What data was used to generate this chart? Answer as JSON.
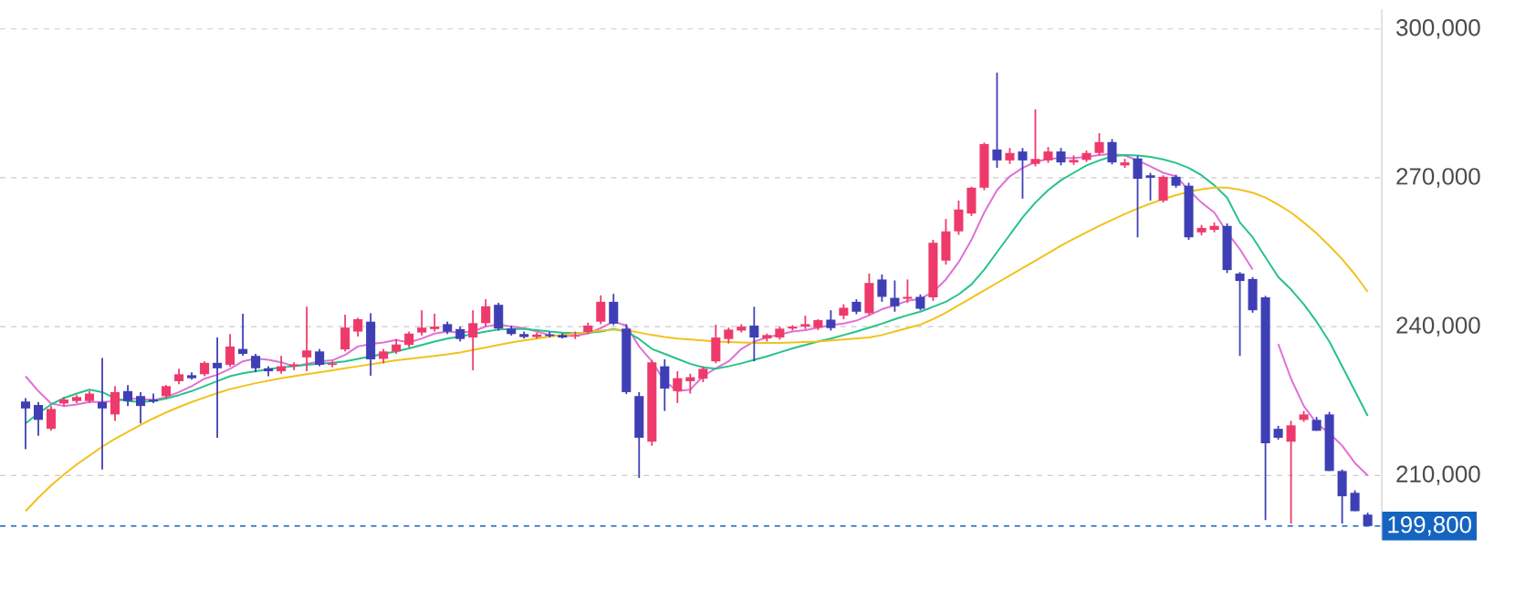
{
  "chart_data": {
    "type": "candlestick",
    "categories": [
      null,
      null,
      null,
      null,
      null,
      null,
      null,
      null,
      null,
      null,
      null,
      null,
      null,
      null,
      null,
      null,
      null,
      null,
      null,
      null,
      null,
      null,
      null,
      null,
      null,
      null,
      null,
      null,
      null,
      null,
      null,
      null,
      null,
      null,
      null,
      null,
      null,
      null,
      null,
      null,
      null,
      null,
      null,
      null,
      null,
      null,
      null,
      null,
      null,
      null,
      null,
      null,
      null,
      null,
      null,
      null,
      null,
      null,
      null,
      null,
      null,
      null,
      null,
      null,
      null,
      null,
      null,
      null,
      null,
      null,
      null,
      null,
      null,
      null,
      null,
      null,
      null,
      null,
      null,
      null,
      null,
      null,
      null,
      null,
      null,
      null,
      null,
      null,
      null,
      null,
      null,
      null,
      null,
      null,
      null,
      null,
      null,
      null,
      null,
      null,
      null,
      null,
      null,
      null,
      null,
      null
    ],
    "ohlc": [
      [
        224900,
        225600,
        215300,
        223500
      ],
      [
        224200,
        224800,
        218000,
        221200
      ],
      [
        219400,
        224000,
        219000,
        223400
      ],
      [
        224500,
        225800,
        224000,
        225300
      ],
      [
        225000,
        226200,
        224600,
        225800
      ],
      [
        225000,
        227000,
        224600,
        226500
      ],
      [
        224800,
        233700,
        211200,
        223500
      ],
      [
        222300,
        228000,
        221000,
        226800
      ],
      [
        227000,
        228200,
        224000,
        225000
      ],
      [
        226000,
        226800,
        220500,
        224000
      ],
      [
        225300,
        226500,
        224600,
        224900
      ],
      [
        226000,
        228200,
        225500,
        228000
      ],
      [
        229000,
        231500,
        228400,
        230400
      ],
      [
        230200,
        230800,
        229300,
        229600
      ],
      [
        230400,
        233000,
        230000,
        232700
      ],
      [
        232700,
        237800,
        217600,
        231600
      ],
      [
        232300,
        238500,
        231900,
        236000
      ],
      [
        235500,
        242600,
        234100,
        234500
      ],
      [
        234100,
        234500,
        230800,
        231600
      ],
      [
        231600,
        232000,
        230000,
        231000
      ],
      [
        231000,
        234100,
        230500,
        232000
      ],
      [
        232000,
        232800,
        231200,
        232400
      ],
      [
        233800,
        244000,
        231000,
        235200
      ],
      [
        235000,
        235500,
        232000,
        232300
      ],
      [
        232300,
        233000,
        231800,
        232600
      ],
      [
        235400,
        242400,
        235000,
        239800
      ],
      [
        239000,
        241800,
        238000,
        241500
      ],
      [
        241000,
        242700,
        230100,
        233400
      ],
      [
        233500,
        235500,
        232600,
        235000
      ],
      [
        235000,
        237500,
        234500,
        236400
      ],
      [
        236300,
        239000,
        235800,
        238600
      ],
      [
        238800,
        243300,
        238200,
        239800
      ],
      [
        239500,
        242600,
        239000,
        240000
      ],
      [
        240500,
        241000,
        238500,
        239000
      ],
      [
        239500,
        240000,
        237000,
        237500
      ],
      [
        237800,
        243300,
        231200,
        240700
      ],
      [
        240700,
        245500,
        240000,
        244100
      ],
      [
        244400,
        244800,
        239200,
        239600
      ],
      [
        239600,
        240200,
        238200,
        238500
      ],
      [
        238500,
        239000,
        237600,
        237900
      ],
      [
        237900,
        238800,
        237600,
        238400
      ],
      [
        238400,
        239000,
        237800,
        238100
      ],
      [
        238300,
        238700,
        237600,
        237800
      ],
      [
        238000,
        239000,
        237500,
        238200
      ],
      [
        238900,
        240800,
        238600,
        240200
      ],
      [
        241000,
        246300,
        240500,
        245000
      ],
      [
        245000,
        246600,
        240300,
        240600
      ],
      [
        239600,
        240500,
        226400,
        226800
      ],
      [
        226000,
        226800,
        209500,
        217600
      ],
      [
        216800,
        233300,
        216000,
        232800
      ],
      [
        232000,
        233400,
        223000,
        227500
      ],
      [
        227000,
        231000,
        224600,
        229600
      ],
      [
        229000,
        230500,
        226500,
        229800
      ],
      [
        229500,
        232000,
        228800,
        231500
      ],
      [
        233000,
        240400,
        232600,
        237800
      ],
      [
        237500,
        239800,
        236600,
        239400
      ],
      [
        239200,
        240500,
        238800,
        240000
      ],
      [
        240200,
        244000,
        233000,
        237800
      ],
      [
        237600,
        238600,
        237000,
        238300
      ],
      [
        237800,
        240000,
        237400,
        239600
      ],
      [
        239600,
        240300,
        239200,
        240000
      ],
      [
        240000,
        242200,
        239500,
        240500
      ],
      [
        239800,
        241500,
        239300,
        241300
      ],
      [
        241400,
        243300,
        239200,
        239700
      ],
      [
        242200,
        244500,
        241500,
        243800
      ],
      [
        245000,
        245500,
        242500,
        243000
      ],
      [
        242700,
        250700,
        242300,
        248800
      ],
      [
        249500,
        250500,
        245000,
        246000
      ],
      [
        245800,
        249300,
        243000,
        244100
      ],
      [
        245600,
        249500,
        244800,
        246000
      ],
      [
        246000,
        246500,
        243300,
        243600
      ],
      [
        245900,
        257500,
        245200,
        256900
      ],
      [
        253300,
        261700,
        252500,
        259200
      ],
      [
        259200,
        265400,
        258500,
        263600
      ],
      [
        262800,
        268200,
        262300,
        268000
      ],
      [
        268000,
        277100,
        267500,
        276800
      ],
      [
        275700,
        291200,
        272000,
        273500
      ],
      [
        273500,
        276000,
        272800,
        275000
      ],
      [
        275300,
        276000,
        265800,
        273500
      ],
      [
        272800,
        283800,
        272300,
        273800
      ],
      [
        273500,
        276200,
        273000,
        275300
      ],
      [
        275300,
        276000,
        272500,
        273100
      ],
      [
        273100,
        274500,
        272600,
        273600
      ],
      [
        273600,
        275500,
        273200,
        275000
      ],
      [
        275000,
        279000,
        274500,
        277200
      ],
      [
        277200,
        277800,
        272700,
        273100
      ],
      [
        272500,
        273800,
        272000,
        273100
      ],
      [
        273900,
        274400,
        258000,
        269800
      ],
      [
        270500,
        271000,
        265400,
        270000
      ],
      [
        265400,
        270500,
        265000,
        270200
      ],
      [
        270200,
        270600,
        268000,
        268400
      ],
      [
        268400,
        269000,
        257500,
        258000
      ],
      [
        259000,
        260500,
        258400,
        259900
      ],
      [
        259500,
        261000,
        259000,
        260300
      ],
      [
        260300,
        260800,
        250800,
        251400
      ],
      [
        250700,
        251000,
        234100,
        249200
      ],
      [
        249600,
        250000,
        242800,
        243300
      ],
      [
        245900,
        246200,
        201000,
        216500
      ],
      [
        219400,
        220000,
        217200,
        217600
      ],
      [
        216800,
        221000,
        200300,
        220100
      ],
      [
        221200,
        223000,
        220800,
        222300
      ],
      [
        221200,
        221800,
        219000,
        219000
      ],
      [
        222300,
        222800,
        210900,
        210900
      ],
      [
        210900,
        211200,
        200300,
        205800
      ],
      [
        206500,
        207000,
        202800,
        202800
      ],
      [
        202100,
        202500,
        199800,
        199800
      ]
    ],
    "colors": [
      "#3f3fb5",
      "#3f3fb5",
      "#ee3a6a",
      "#ee3a6a",
      "#ee3a6a",
      "#ee3a6a",
      "#3f3fb5",
      "#ee3a6a",
      "#3f3fb5",
      "#3f3fb5",
      "#3f3fb5",
      "#ee3a6a",
      "#ee3a6a",
      "#3f3fb5",
      "#ee3a6a",
      "#3f3fb5",
      "#ee3a6a",
      "#3f3fb5",
      "#3f3fb5",
      "#3f3fb5",
      "#ee3a6a",
      "#ee3a6a",
      "#ee3a6a",
      "#3f3fb5",
      "#ee3a6a",
      "#ee3a6a",
      "#ee3a6a",
      "#3f3fb5",
      "#ee3a6a",
      "#ee3a6a",
      "#ee3a6a",
      "#ee3a6a",
      "#ee3a6a",
      "#3f3fb5",
      "#3f3fb5",
      "#ee3a6a",
      "#ee3a6a",
      "#3f3fb5",
      "#3f3fb5",
      "#3f3fb5",
      "#ee3a6a",
      "#3f3fb5",
      "#3f3fb5",
      "#ee3a6a",
      "#ee3a6a",
      "#ee3a6a",
      "#3f3fb5",
      "#3f3fb5",
      "#3f3fb5",
      "#ee3a6a",
      "#3f3fb5",
      "#ee3a6a",
      "#ee3a6a",
      "#ee3a6a",
      "#ee3a6a",
      "#ee3a6a",
      "#ee3a6a",
      "#3f3fb5",
      "#ee3a6a",
      "#ee3a6a",
      "#ee3a6a",
      "#ee3a6a",
      "#ee3a6a",
      "#3f3fb5",
      "#ee3a6a",
      "#3f3fb5",
      "#ee3a6a",
      "#3f3fb5",
      "#3f3fb5",
      "#ee3a6a",
      "#3f3fb5",
      "#ee3a6a",
      "#ee3a6a",
      "#ee3a6a",
      "#ee3a6a",
      "#ee3a6a",
      "#3f3fb5",
      "#ee3a6a",
      "#3f3fb5",
      "#ee3a6a",
      "#ee3a6a",
      "#3f3fb5",
      "#ee3a6a",
      "#ee3a6a",
      "#ee3a6a",
      "#3f3fb5",
      "#ee3a6a",
      "#3f3fb5",
      "#3f3fb5",
      "#ee3a6a",
      "#3f3fb5",
      "#3f3fb5",
      "#ee3a6a",
      "#ee3a6a",
      "#3f3fb5",
      "#3f3fb5",
      "#3f3fb5",
      "#3f3fb5",
      "#3f3fb5",
      "#ee3a6a",
      "#ee3a6a",
      "#3f3fb5",
      "#3f3fb5",
      "#3f3fb5",
      "#3f3fb5",
      "#3f3fb5"
    ],
    "series": [
      {
        "type": "line",
        "color": "#e070d8",
        "values": [
          230000,
          227000,
          224500,
          224000,
          224300,
          224800,
          224800,
          225000,
          225500,
          225400,
          225200,
          225800,
          226800,
          228000,
          229500,
          230300,
          231500,
          233000,
          233600,
          233300,
          232800,
          232000,
          232500,
          233000,
          233200,
          234300,
          236000,
          236500,
          236800,
          237300,
          236800,
          237600,
          238600,
          239000,
          238800,
          239000,
          240000,
          240500,
          240000,
          239700,
          239000,
          238300,
          238100,
          238200,
          238600,
          239700,
          241000,
          240200,
          236000,
          233000,
          229000,
          227000,
          227300,
          230000,
          231600,
          233000,
          235500,
          237000,
          237800,
          238400,
          239000,
          239300,
          239800,
          240300,
          240600,
          241200,
          242300,
          243500,
          244300,
          245200,
          245600,
          247000,
          249500,
          253000,
          257500,
          263000,
          267500,
          270300,
          272000,
          273200,
          273800,
          274000,
          274000,
          274200,
          274600,
          274800,
          274500,
          273500,
          272300,
          271000,
          270300,
          267500,
          265000,
          263000,
          259000,
          255600,
          251500,
          null,
          236500,
          229500,
          224000,
          220500,
          218500,
          216000,
          212500,
          210000
        ]
      },
      {
        "type": "line",
        "color": "#26c28a",
        "values": [
          220500,
          222500,
          224300,
          225600,
          226500,
          227300,
          226800,
          225500,
          225000,
          224800,
          225000,
          225500,
          226200,
          227000,
          228000,
          229000,
          230000,
          230600,
          231000,
          231400,
          231800,
          232000,
          232300,
          232500,
          232700,
          233000,
          233500,
          234000,
          234500,
          235000,
          235600,
          236300,
          237000,
          237600,
          238000,
          238500,
          239000,
          239400,
          239500,
          239500,
          239300,
          239000,
          238800,
          238700,
          238800,
          239000,
          239500,
          239000,
          237500,
          235500,
          234500,
          233500,
          232500,
          231800,
          231500,
          232000,
          232600,
          233300,
          234000,
          234800,
          235600,
          236300,
          237000,
          237600,
          238300,
          239000,
          239800,
          240600,
          241500,
          242300,
          243000,
          244000,
          245000,
          246500,
          248500,
          251500,
          255000,
          258500,
          262000,
          265000,
          267500,
          269500,
          271000,
          272500,
          273500,
          274300,
          274600,
          274500,
          274200,
          273700,
          273000,
          272000,
          270500,
          268500,
          266000,
          261000,
          258000,
          254000,
          250000,
          247500,
          244500,
          241000,
          237000,
          232000,
          227000,
          222000
        ]
      },
      {
        "type": "line",
        "color": "#f2c21b",
        "values": [
          202800,
          205500,
          208000,
          210200,
          212200,
          214000,
          215800,
          217400,
          218800,
          220200,
          221500,
          222700,
          223800,
          224800,
          225700,
          226600,
          227400,
          228000,
          228600,
          229100,
          229600,
          230000,
          230400,
          230800,
          231200,
          231600,
          232000,
          232400,
          232800,
          233200,
          233500,
          233800,
          234100,
          234400,
          234800,
          235300,
          235800,
          236300,
          236800,
          237200,
          237600,
          238000,
          238300,
          238600,
          238900,
          239200,
          239400,
          239300,
          238800,
          238300,
          237900,
          237600,
          237400,
          237200,
          237000,
          236900,
          236800,
          236700,
          236700,
          236700,
          236800,
          236900,
          237000,
          237200,
          237400,
          237600,
          237800,
          238300,
          239000,
          239700,
          240400,
          241500,
          242800,
          244300,
          245800,
          247300,
          248800,
          250300,
          251800,
          253300,
          254800,
          256300,
          257700,
          259000,
          260300,
          261500,
          262700,
          263800,
          264800,
          265700,
          266500,
          267200,
          267700,
          268000,
          268000,
          267600,
          267000,
          266000,
          264600,
          263000,
          261000,
          258800,
          256300,
          253600,
          250500,
          247000
        ]
      }
    ],
    "ylim": [
      197000,
      304000
    ],
    "yticks": [
      {
        "value": 210000,
        "label": "210,000"
      },
      {
        "value": 240000,
        "label": "240,000"
      },
      {
        "value": 270000,
        "label": "270,000"
      },
      {
        "value": 300000,
        "label": "300,000"
      }
    ],
    "grid": "y",
    "tick_labels": "y",
    "ref_lines": [
      {
        "axis": "y",
        "value": 199800,
        "label": "199,800",
        "color": "#1565c0",
        "line_style": "dashed"
      }
    ]
  }
}
